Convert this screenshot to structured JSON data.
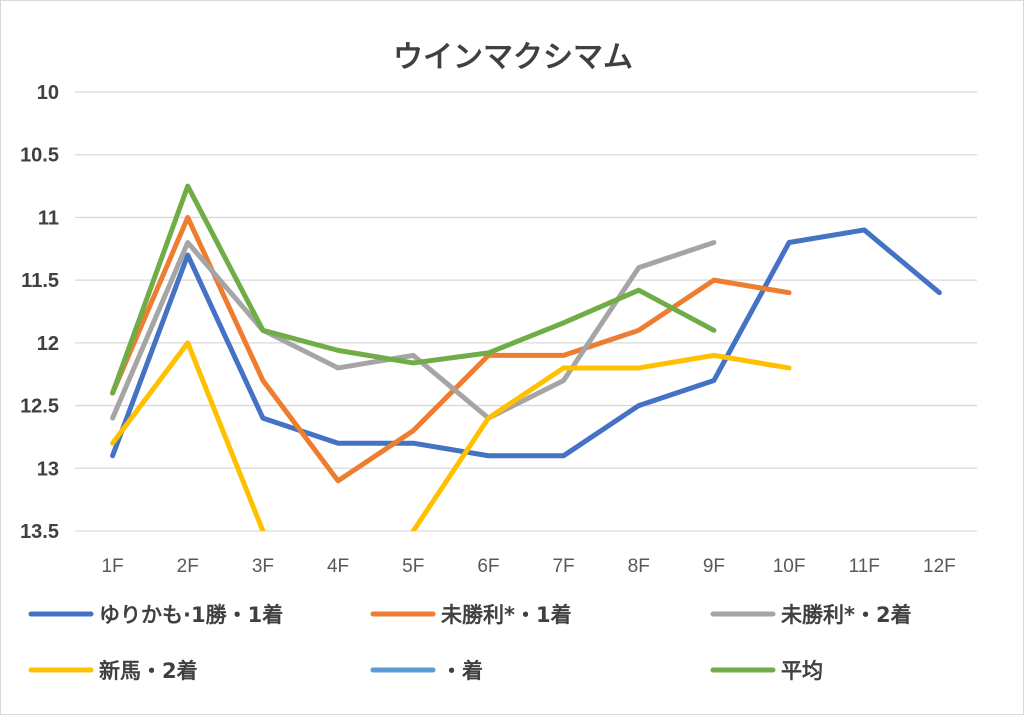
{
  "chart_data": {
    "type": "line",
    "title": "ウインマクシマム",
    "xlabel": "",
    "ylabel": "",
    "categories": [
      "1F",
      "2F",
      "3F",
      "4F",
      "5F",
      "6F",
      "7F",
      "8F",
      "9F",
      "10F",
      "11F",
      "12F"
    ],
    "y_ticks": [
      "10",
      "10.5",
      "11",
      "11.5",
      "12",
      "12.5",
      "13",
      "13.5"
    ],
    "ylim": [
      10,
      13.5
    ],
    "y_reversed": true,
    "grid": true,
    "legend_position": "bottom",
    "series": [
      {
        "name": "ゆりかも·1勝・1着",
        "color": "#4472C4",
        "values": [
          12.9,
          11.3,
          12.6,
          12.8,
          12.8,
          12.9,
          12.9,
          12.5,
          12.3,
          11.2,
          11.1,
          11.6
        ]
      },
      {
        "name": "未勝利*・1着",
        "color": "#ED7D31",
        "values": [
          12.4,
          11.0,
          12.3,
          13.1,
          12.7,
          12.1,
          12.1,
          11.9,
          11.5,
          11.6,
          null,
          null
        ]
      },
      {
        "name": "未勝利*・2着",
        "color": "#A5A5A5",
        "values": [
          12.6,
          11.2,
          11.9,
          12.2,
          12.1,
          12.6,
          12.3,
          11.4,
          11.2,
          null,
          null,
          null
        ]
      },
      {
        "name": "新馬・2着",
        "color": "#FFC000",
        "values": [
          12.8,
          12.0,
          13.5,
          null,
          13.5,
          12.6,
          12.2,
          12.2,
          12.1,
          12.2,
          null,
          null
        ]
      },
      {
        "name": "・着",
        "color": "#5B9BD5",
        "values": [
          null,
          null,
          null,
          null,
          null,
          null,
          null,
          null,
          null,
          null,
          null,
          null
        ]
      },
      {
        "name": "平均",
        "color": "#70AD47",
        "values": [
          12.4,
          10.75,
          11.9,
          12.06,
          12.16,
          12.08,
          11.84,
          11.58,
          11.9,
          null,
          null,
          null
        ]
      }
    ]
  }
}
